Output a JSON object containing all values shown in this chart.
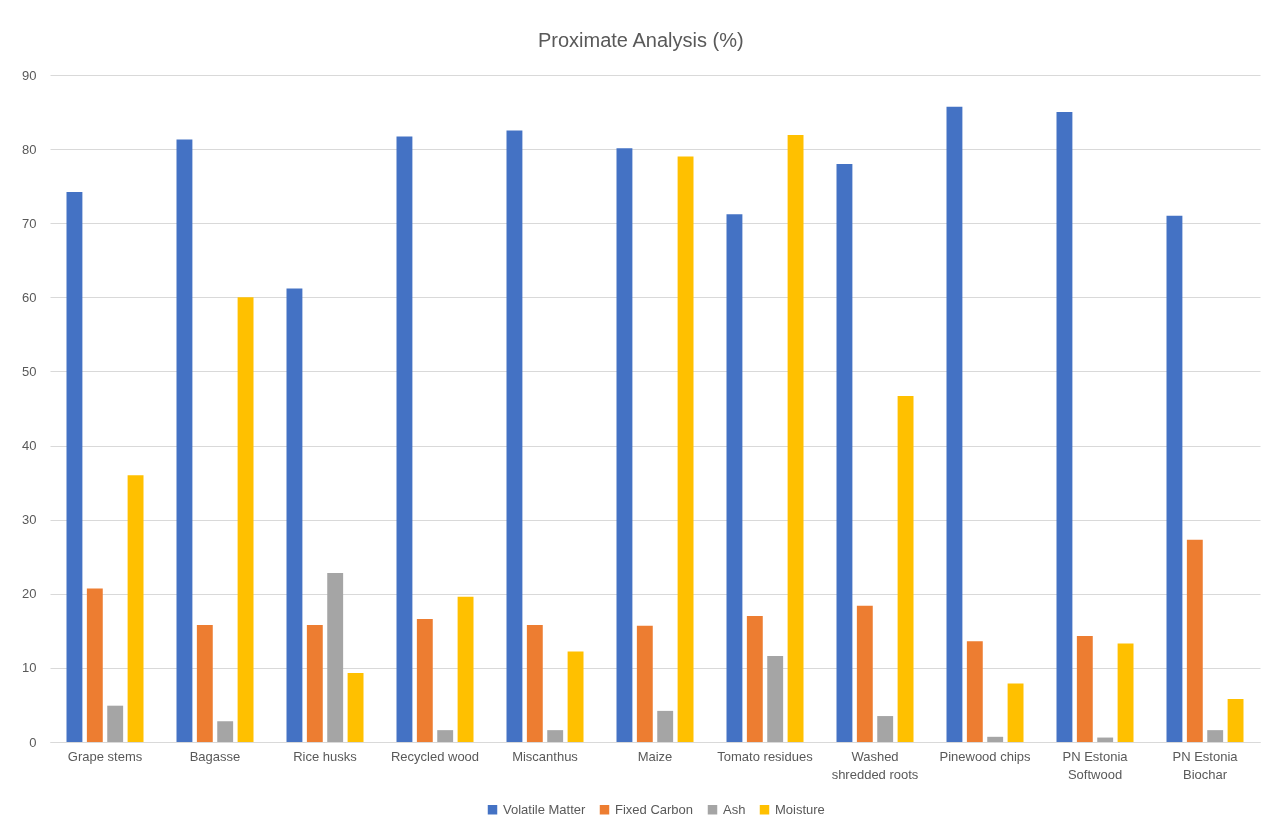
{
  "chart_data": {
    "type": "bar",
    "title": "Proximate Analysis (%)",
    "categories": [
      "Grape stems",
      "Bagasse",
      "Rice husks",
      "Recycled wood",
      "Miscanthus",
      "Maize",
      "Tomato residues",
      "Washed shredded roots",
      "Pinewood chips",
      "PN Estonia Softwood",
      "PN Estonia Biochar"
    ],
    "series": [
      {
        "name": "Volatile Matter",
        "color": "#4472c4",
        "values": [
          74.2,
          81.3,
          61.2,
          81.7,
          82.5,
          80.1,
          71.2,
          78.0,
          85.7,
          85.0,
          71.0
        ]
      },
      {
        "name": "Fixed Carbon",
        "color": "#ed7d31",
        "values": [
          20.7,
          15.8,
          15.8,
          16.6,
          15.8,
          15.7,
          17.0,
          18.4,
          13.6,
          14.3,
          27.3
        ]
      },
      {
        "name": "Ash",
        "color": "#a5a5a5",
        "values": [
          4.9,
          2.8,
          22.8,
          1.6,
          1.6,
          4.2,
          11.6,
          3.5,
          0.7,
          0.6,
          1.6
        ]
      },
      {
        "name": "Moisture",
        "color": "#ffc000",
        "values": [
          36.0,
          60.0,
          9.3,
          19.6,
          12.2,
          79.0,
          81.9,
          46.7,
          7.9,
          13.3,
          5.8
        ]
      }
    ],
    "ylim": [
      0,
      90
    ],
    "yticks": [
      0,
      10,
      20,
      30,
      40,
      50,
      60,
      70,
      80,
      90
    ],
    "grid": "y",
    "legend": "bottom"
  }
}
